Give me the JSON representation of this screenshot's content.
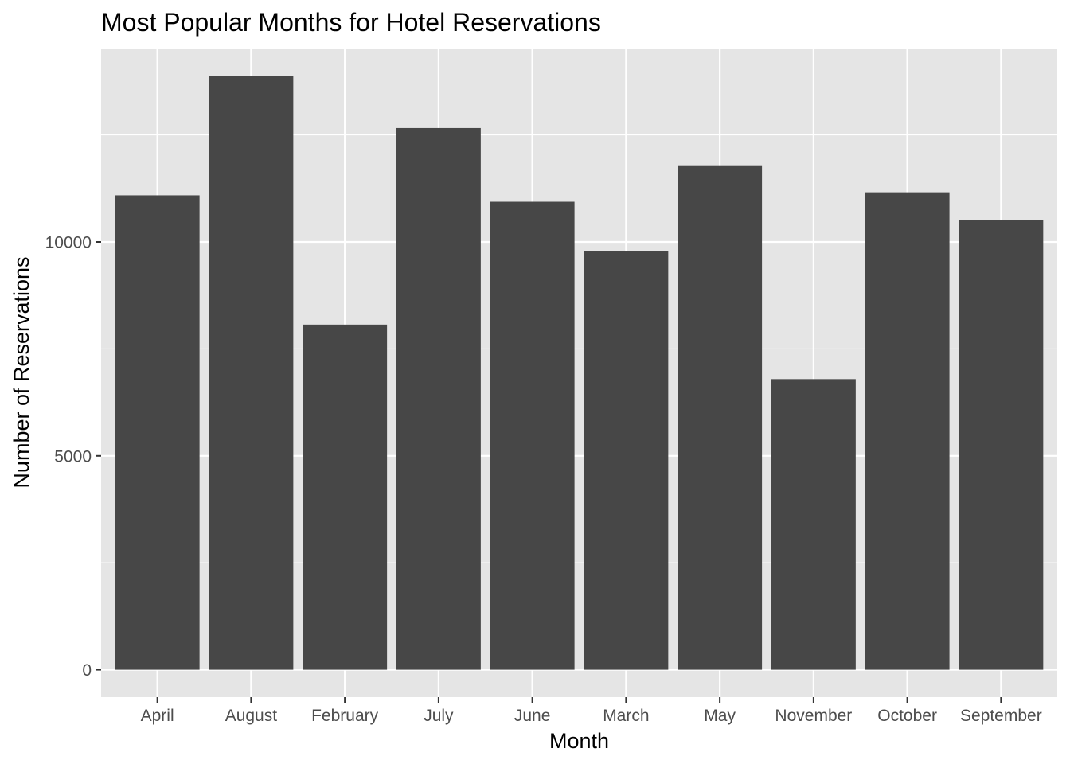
{
  "chart_data": {
    "type": "bar",
    "title": "Most Popular Months for Hotel Reservations",
    "xlabel": "Month",
    "ylabel": "Number of Reservations",
    "categories": [
      "April",
      "August",
      "February",
      "July",
      "June",
      "March",
      "May",
      "November",
      "October",
      "September"
    ],
    "values": [
      11089,
      13877,
      8068,
      12661,
      10939,
      9794,
      11791,
      6794,
      11160,
      10508
    ],
    "ylim": [
      -640,
      14520
    ],
    "yticks": [
      0,
      5000,
      10000
    ],
    "yticks_label": [
      "0",
      "5000",
      "10000"
    ],
    "grid": true,
    "legend": "none",
    "colors": {
      "bar": "#474747",
      "panel": "#e5e5e5",
      "grid": "#ffffff",
      "tick": "#333333"
    }
  }
}
